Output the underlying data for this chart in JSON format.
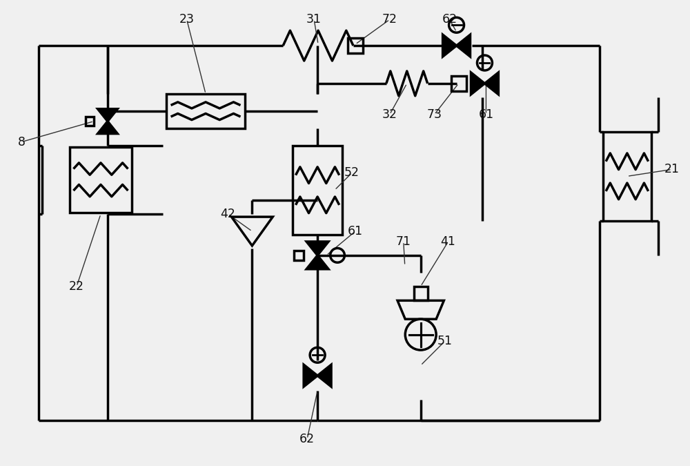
{
  "bg_color": "#f0f0f0",
  "line_color": "#000000",
  "lw": 2.5,
  "figsize": [
    10.0,
    6.75
  ],
  "dpi": 100
}
